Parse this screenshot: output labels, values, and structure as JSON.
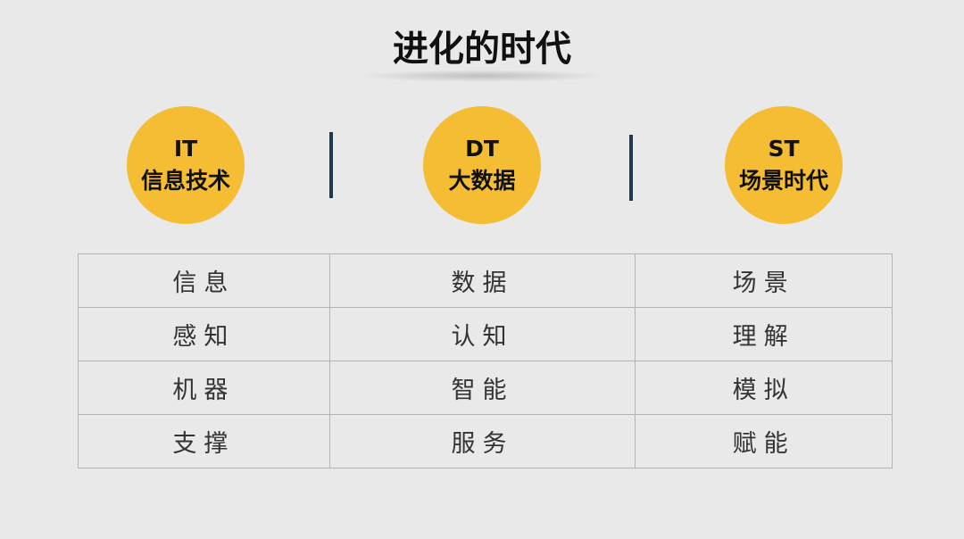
{
  "title": "进化的时代",
  "eras": [
    {
      "abbr": "IT",
      "name": "信息技术"
    },
    {
      "abbr": "DT",
      "name": "大数据"
    },
    {
      "abbr": "ST",
      "name": "场景时代"
    }
  ],
  "colors": {
    "circle": "#f4bd33",
    "divider": "#1e3a52",
    "background": "#e9e9e9"
  },
  "table": [
    [
      "信息",
      "数据",
      "场景"
    ],
    [
      "感知",
      "认知",
      "理解"
    ],
    [
      "机器",
      "智能",
      "模拟"
    ],
    [
      "支撑",
      "服务",
      "赋能"
    ]
  ]
}
